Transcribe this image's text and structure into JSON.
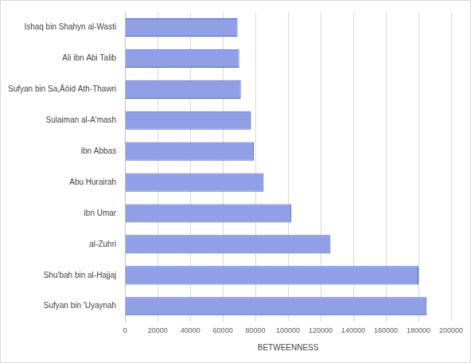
{
  "chart_data": {
    "type": "bar",
    "orientation": "horizontal",
    "categories": [
      "Ishaq bin Shahyn al-Wasti",
      "Ali ibn Abi Talib",
      "Sufyan bin Sa,Äòid Ath-Thawri",
      "Sulaiman al-A'mash",
      "ibn Abbas",
      "Abu Hurairah",
      "ibn Umar",
      "al-Zuhri",
      "Shu'bah bin al-Hajjaj",
      "Sufyan bin 'Uyaynah"
    ],
    "values": [
      69000,
      70000,
      71000,
      77000,
      79000,
      85000,
      102000,
      126000,
      180000,
      185000
    ],
    "color": "#8fa0e6",
    "x_label": "BETWEENNESS",
    "xlim": [
      0,
      200000
    ],
    "xticks": [
      0,
      20000,
      40000,
      60000,
      80000,
      100000,
      120000,
      140000,
      160000,
      180000,
      200000
    ],
    "grid": true
  }
}
